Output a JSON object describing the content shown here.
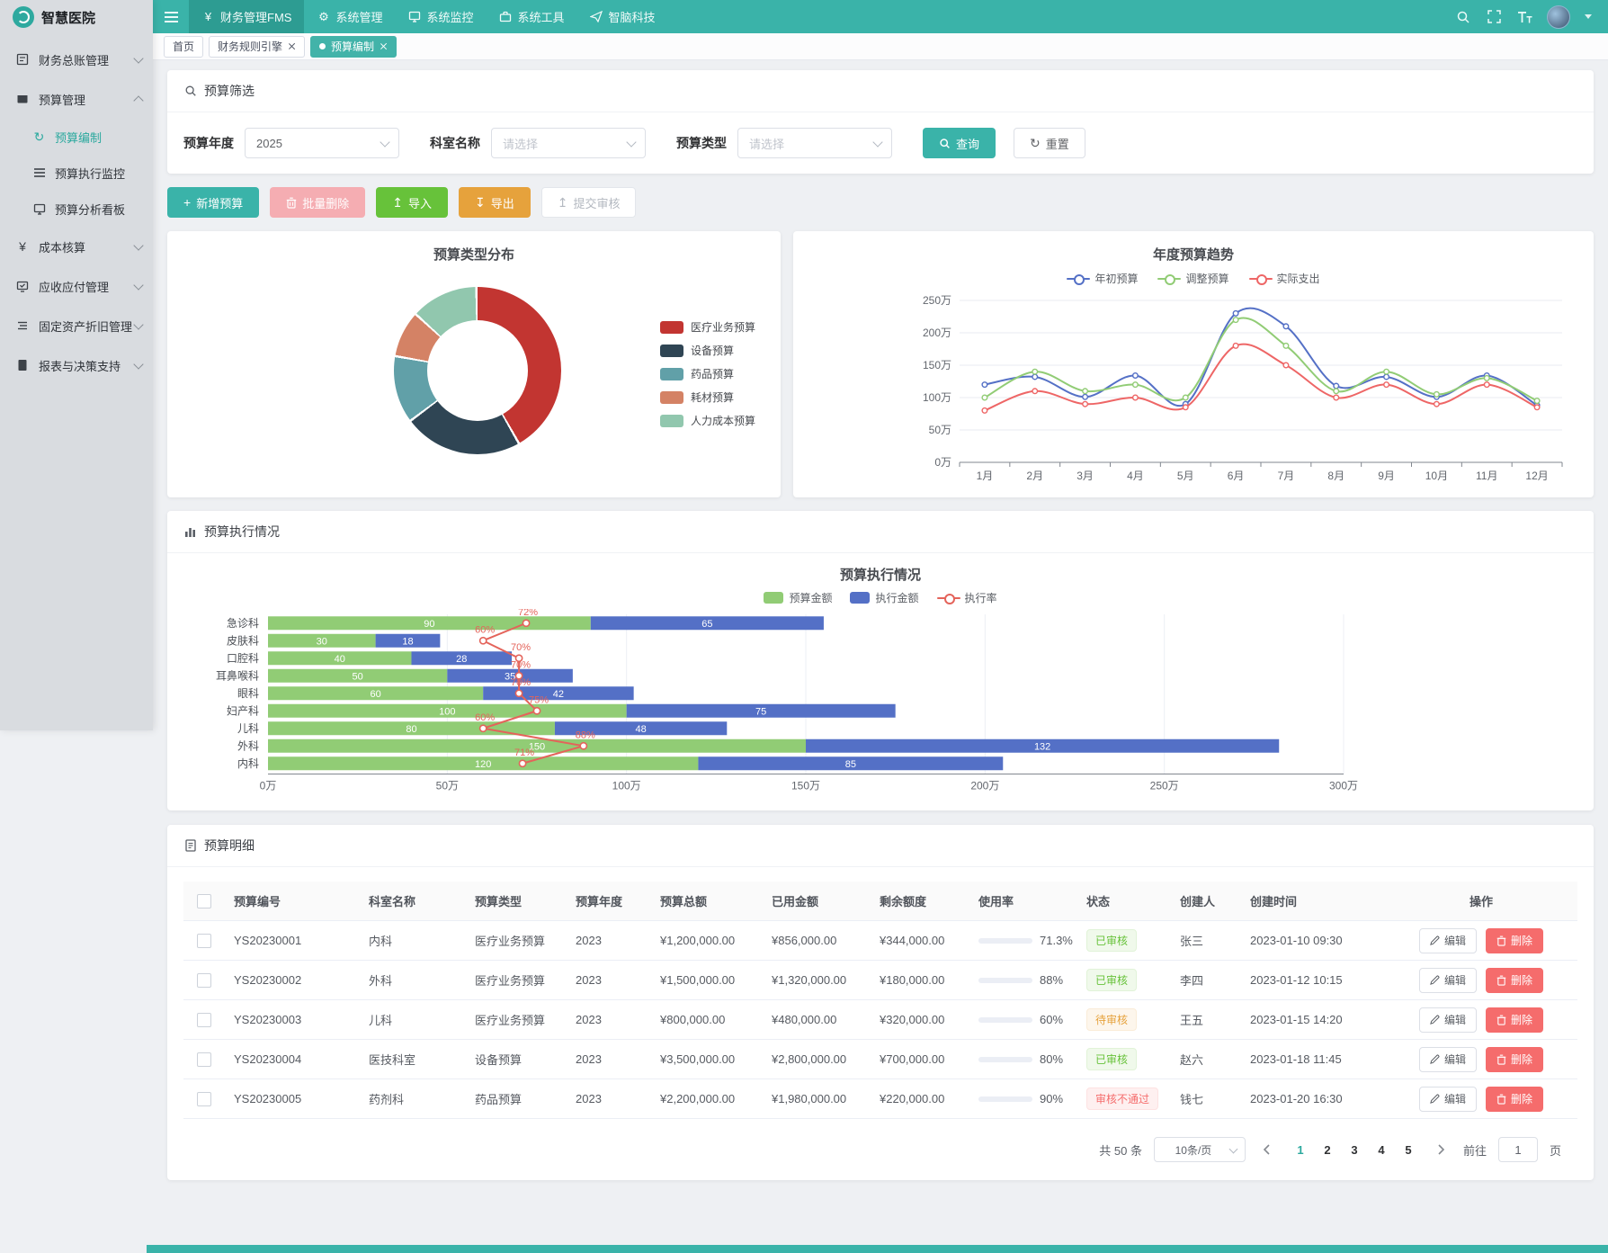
{
  "colors": {
    "accent_teal": "#3ab3a9",
    "nav_active": "#2d9c92",
    "success": "#67c23a",
    "warning": "#e6a23c",
    "danger": "#f56c6c"
  },
  "app": {
    "title": "智慧医院"
  },
  "topnav": {
    "items": [
      {
        "label": "财务管理FMS"
      },
      {
        "label": "系统管理"
      },
      {
        "label": "系统监控"
      },
      {
        "label": "系统工具"
      },
      {
        "label": "智脑科技"
      }
    ]
  },
  "tabs": {
    "items": [
      {
        "label": "首页"
      },
      {
        "label": "财务规则引擎"
      },
      {
        "label": "预算编制"
      }
    ]
  },
  "sidebar": {
    "groups": [
      {
        "label": "财务总账管理"
      },
      {
        "label": "预算管理",
        "children": [
          {
            "label": "预算编制"
          },
          {
            "label": "预算执行监控"
          },
          {
            "label": "预算分析看板"
          }
        ]
      },
      {
        "label": "成本核算"
      },
      {
        "label": "应收应付管理"
      },
      {
        "label": "固定资产折旧管理"
      },
      {
        "label": "报表与决策支持"
      }
    ]
  },
  "icons": {
    "yen": "¥",
    "gear": "⚙",
    "refresh": "↻",
    "plus": "+",
    "upload": "↥",
    "download": "↧",
    "list": "≡"
  },
  "filter": {
    "title": "预算筛选",
    "fields": [
      {
        "label": "预算年度",
        "value": "2025"
      },
      {
        "label": "科室名称",
        "placeholder": "请选择"
      },
      {
        "label": "预算类型",
        "placeholder": "请选择"
      }
    ],
    "search_label": "查询",
    "reset_label": "重置"
  },
  "actions": {
    "add": "新增预算",
    "batch_delete": "批量删除",
    "import": "导入",
    "export": "导出",
    "submit_review": "提交审核"
  },
  "exec_panel": {
    "title": "预算执行情况"
  },
  "chart_data": [
    {
      "type": "pie",
      "title": "预算类型分布",
      "labels": [
        "医疗业务预算",
        "设备预算",
        "药品预算",
        "耗材预算",
        "人力成本预算"
      ],
      "values": [
        42,
        23,
        13,
        9,
        13
      ],
      "colors": [
        "#c23531",
        "#2f4554",
        "#61a0a8",
        "#d48265",
        "#91c7ae"
      ],
      "donut": true,
      "legend_position": "right"
    },
    {
      "type": "line",
      "title": "年度预算趋势",
      "x": [
        "1月",
        "2月",
        "3月",
        "4月",
        "5月",
        "6月",
        "7月",
        "8月",
        "9月",
        "10月",
        "11月",
        "12月"
      ],
      "unit": "万",
      "ylim": [
        0,
        250
      ],
      "yticks": [
        0,
        50,
        100,
        150,
        200,
        250
      ],
      "grid": true,
      "legend_position": "top",
      "series": [
        {
          "name": "年初预算",
          "color": "#5470c6",
          "values": [
            120,
            132,
            101,
            134,
            90,
            230,
            210,
            118,
            132,
            101,
            134,
            88
          ]
        },
        {
          "name": "调整预算",
          "color": "#91cc75",
          "values": [
            100,
            140,
            110,
            120,
            100,
            220,
            180,
            110,
            140,
            105,
            130,
            95
          ]
        },
        {
          "name": "实际支出",
          "color": "#ee6666",
          "values": [
            80,
            110,
            90,
            100,
            85,
            180,
            150,
            100,
            120,
            90,
            120,
            85
          ]
        }
      ]
    },
    {
      "type": "bar",
      "title": "预算执行情况",
      "orientation": "horizontal",
      "stacked": true,
      "categories": [
        "急诊科",
        "皮肤科",
        "口腔科",
        "耳鼻喉科",
        "眼科",
        "妇产科",
        "儿科",
        "外科",
        "内科"
      ],
      "unit": "万",
      "xlim": [
        0,
        300
      ],
      "xticks": [
        0,
        50,
        100,
        150,
        200,
        250,
        300
      ],
      "series": [
        {
          "name": "预算金额",
          "color": "#91cc75",
          "values": [
            90,
            30,
            40,
            50,
            60,
            100,
            80,
            150,
            120
          ]
        },
        {
          "name": "执行金额",
          "color": "#5470c6",
          "values": [
            65,
            18,
            28,
            35,
            42,
            75,
            48,
            132,
            85
          ]
        }
      ],
      "line_series": {
        "name": "执行率",
        "color": "#e4635a",
        "suffix": "%",
        "values": [
          72,
          60,
          70,
          70,
          70,
          75,
          60,
          88,
          71
        ]
      }
    }
  ],
  "table": {
    "title": "预算明细",
    "columns": [
      "预算编号",
      "科室名称",
      "预算类型",
      "预算年度",
      "预算总额",
      "已用金额",
      "剩余额度",
      "使用率",
      "状态",
      "创建人",
      "创建时间",
      "操作"
    ],
    "edit_label": "编辑",
    "delete_label": "删除",
    "rows": [
      {
        "id": "YS20230001",
        "dept": "内科",
        "type": "医疗业务预算",
        "year": "2023",
        "total": "¥1,200,000.00",
        "used": "¥856,000.00",
        "remain": "¥344,000.00",
        "usage": 71.3,
        "usage_label": "71.3%",
        "usage_level": "warning",
        "status": "已审核",
        "status_type": "success",
        "creator": "张三",
        "time": "2023-01-10 09:30"
      },
      {
        "id": "YS20230002",
        "dept": "外科",
        "type": "医疗业务预算",
        "year": "2023",
        "total": "¥1,500,000.00",
        "used": "¥1,320,000.00",
        "remain": "¥180,000.00",
        "usage": 88,
        "usage_label": "88%",
        "usage_level": "danger",
        "status": "已审核",
        "status_type": "success",
        "creator": "李四",
        "time": "2023-01-12 10:15"
      },
      {
        "id": "YS20230003",
        "dept": "儿科",
        "type": "医疗业务预算",
        "year": "2023",
        "total": "¥800,000.00",
        "used": "¥480,000.00",
        "remain": "¥320,000.00",
        "usage": 60,
        "usage_label": "60%",
        "usage_level": "warning",
        "status": "待审核",
        "status_type": "warning",
        "creator": "王五",
        "time": "2023-01-15 14:20"
      },
      {
        "id": "YS20230004",
        "dept": "医技科室",
        "type": "设备预算",
        "year": "2023",
        "total": "¥3,500,000.00",
        "used": "¥2,800,000.00",
        "remain": "¥700,000.00",
        "usage": 80,
        "usage_label": "80%",
        "usage_level": "danger",
        "status": "已审核",
        "status_type": "success",
        "creator": "赵六",
        "time": "2023-01-18 11:45"
      },
      {
        "id": "YS20230005",
        "dept": "药剂科",
        "type": "药品预算",
        "year": "2023",
        "total": "¥2,200,000.00",
        "used": "¥1,980,000.00",
        "remain": "¥220,000.00",
        "usage": 90,
        "usage_label": "90%",
        "usage_level": "danger",
        "status": "审核不通过",
        "status_type": "danger",
        "creator": "钱七",
        "time": "2023-01-20 16:30"
      }
    ]
  },
  "pagination": {
    "total": "共 50 条",
    "page_size": "10条/页",
    "pages": [
      "1",
      "2",
      "3",
      "4",
      "5"
    ],
    "active_page": "1",
    "goto_label": "前往",
    "goto_value": "1",
    "goto_suffix": "页"
  }
}
